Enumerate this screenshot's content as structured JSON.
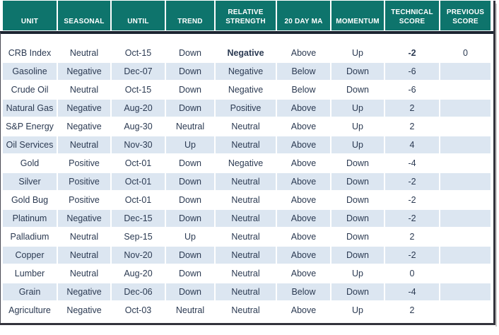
{
  "colors": {
    "header_bg": "#0E746C",
    "header_text": "#FFFFFF",
    "row_bg": "#FFFFFF",
    "stripe_bg": "#DCE6F1",
    "data_text": "#2B3A52",
    "highlight_bg": "#F5404C",
    "highlight_text": "#FFFFFF",
    "header_divider": "#1C2431"
  },
  "chart_data": {
    "type": "table",
    "columns": [
      "UNIT",
      "SEASONAL",
      "UNTIL",
      "TREND",
      "RELATIVE STRENGTH",
      "20 DAY MA",
      "MOMENTUM",
      "TECHNICAL SCORE",
      "PREVIOUS SCORE"
    ],
    "rows": [
      [
        "CRB Index",
        "Neutral",
        "Oct-15",
        "Down",
        "Negative",
        "Above",
        "Up",
        "-2",
        "0"
      ],
      [
        "Gasoline",
        "Negative",
        "Dec-07",
        "Down",
        "Negative",
        "Below",
        "Down",
        "-6",
        ""
      ],
      [
        "Crude Oil",
        "Neutral",
        "Oct-15",
        "Down",
        "Negative",
        "Below",
        "Down",
        "-6",
        ""
      ],
      [
        "Natural Gas",
        "Negative",
        "Aug-20",
        "Down",
        "Positive",
        "Above",
        "Up",
        "2",
        ""
      ],
      [
        "S&P Energy",
        "Negative",
        "Aug-30",
        "Neutral",
        "Neutral",
        "Above",
        "Up",
        "2",
        ""
      ],
      [
        "Oil Services",
        "Neutral",
        "Nov-30",
        "Up",
        "Neutral",
        "Above",
        "Up",
        "4",
        ""
      ],
      [
        "Gold",
        "Positive",
        "Oct-01",
        "Down",
        "Negative",
        "Above",
        "Down",
        "-4",
        ""
      ],
      [
        "Silver",
        "Positive",
        "Oct-01",
        "Down",
        "Neutral",
        "Above",
        "Down",
        "-2",
        ""
      ],
      [
        "Gold Bug",
        "Positive",
        "Oct-01",
        "Down",
        "Neutral",
        "Above",
        "Down",
        "-2",
        ""
      ],
      [
        "Platinum",
        "Negative",
        "Dec-15",
        "Down",
        "Neutral",
        "Above",
        "Down",
        "-2",
        ""
      ],
      [
        "Palladium",
        "Neutral",
        "Sep-15",
        "Up",
        "Neutral",
        "Above",
        "Down",
        "2",
        ""
      ],
      [
        "Copper",
        "Neutral",
        "Nov-20",
        "Down",
        "Neutral",
        "Above",
        "Down",
        "-2",
        ""
      ],
      [
        "Lumber",
        "Neutral",
        "Aug-20",
        "Down",
        "Neutral",
        "Above",
        "Up",
        "0",
        ""
      ],
      [
        "Grain",
        "Negative",
        "Dec-06",
        "Down",
        "Neutral",
        "Below",
        "Down",
        "-4",
        ""
      ],
      [
        "Agriculture",
        "Negative",
        "Oct-03",
        "Neutral",
        "Neutral",
        "Above",
        "Up",
        "2",
        ""
      ]
    ],
    "highlighted_cells": [
      {
        "row": 0,
        "col": 4,
        "value": "Negative"
      },
      {
        "row": 0,
        "col": 7,
        "value": "-2"
      }
    ],
    "layout_hints": {
      "zebra_striping": "rows 2,4,6,... shaded light blue",
      "header_style": "teal cells with white gaps, dark navy rule under header",
      "first_body_row": "empty white spacer row between header and data"
    }
  }
}
